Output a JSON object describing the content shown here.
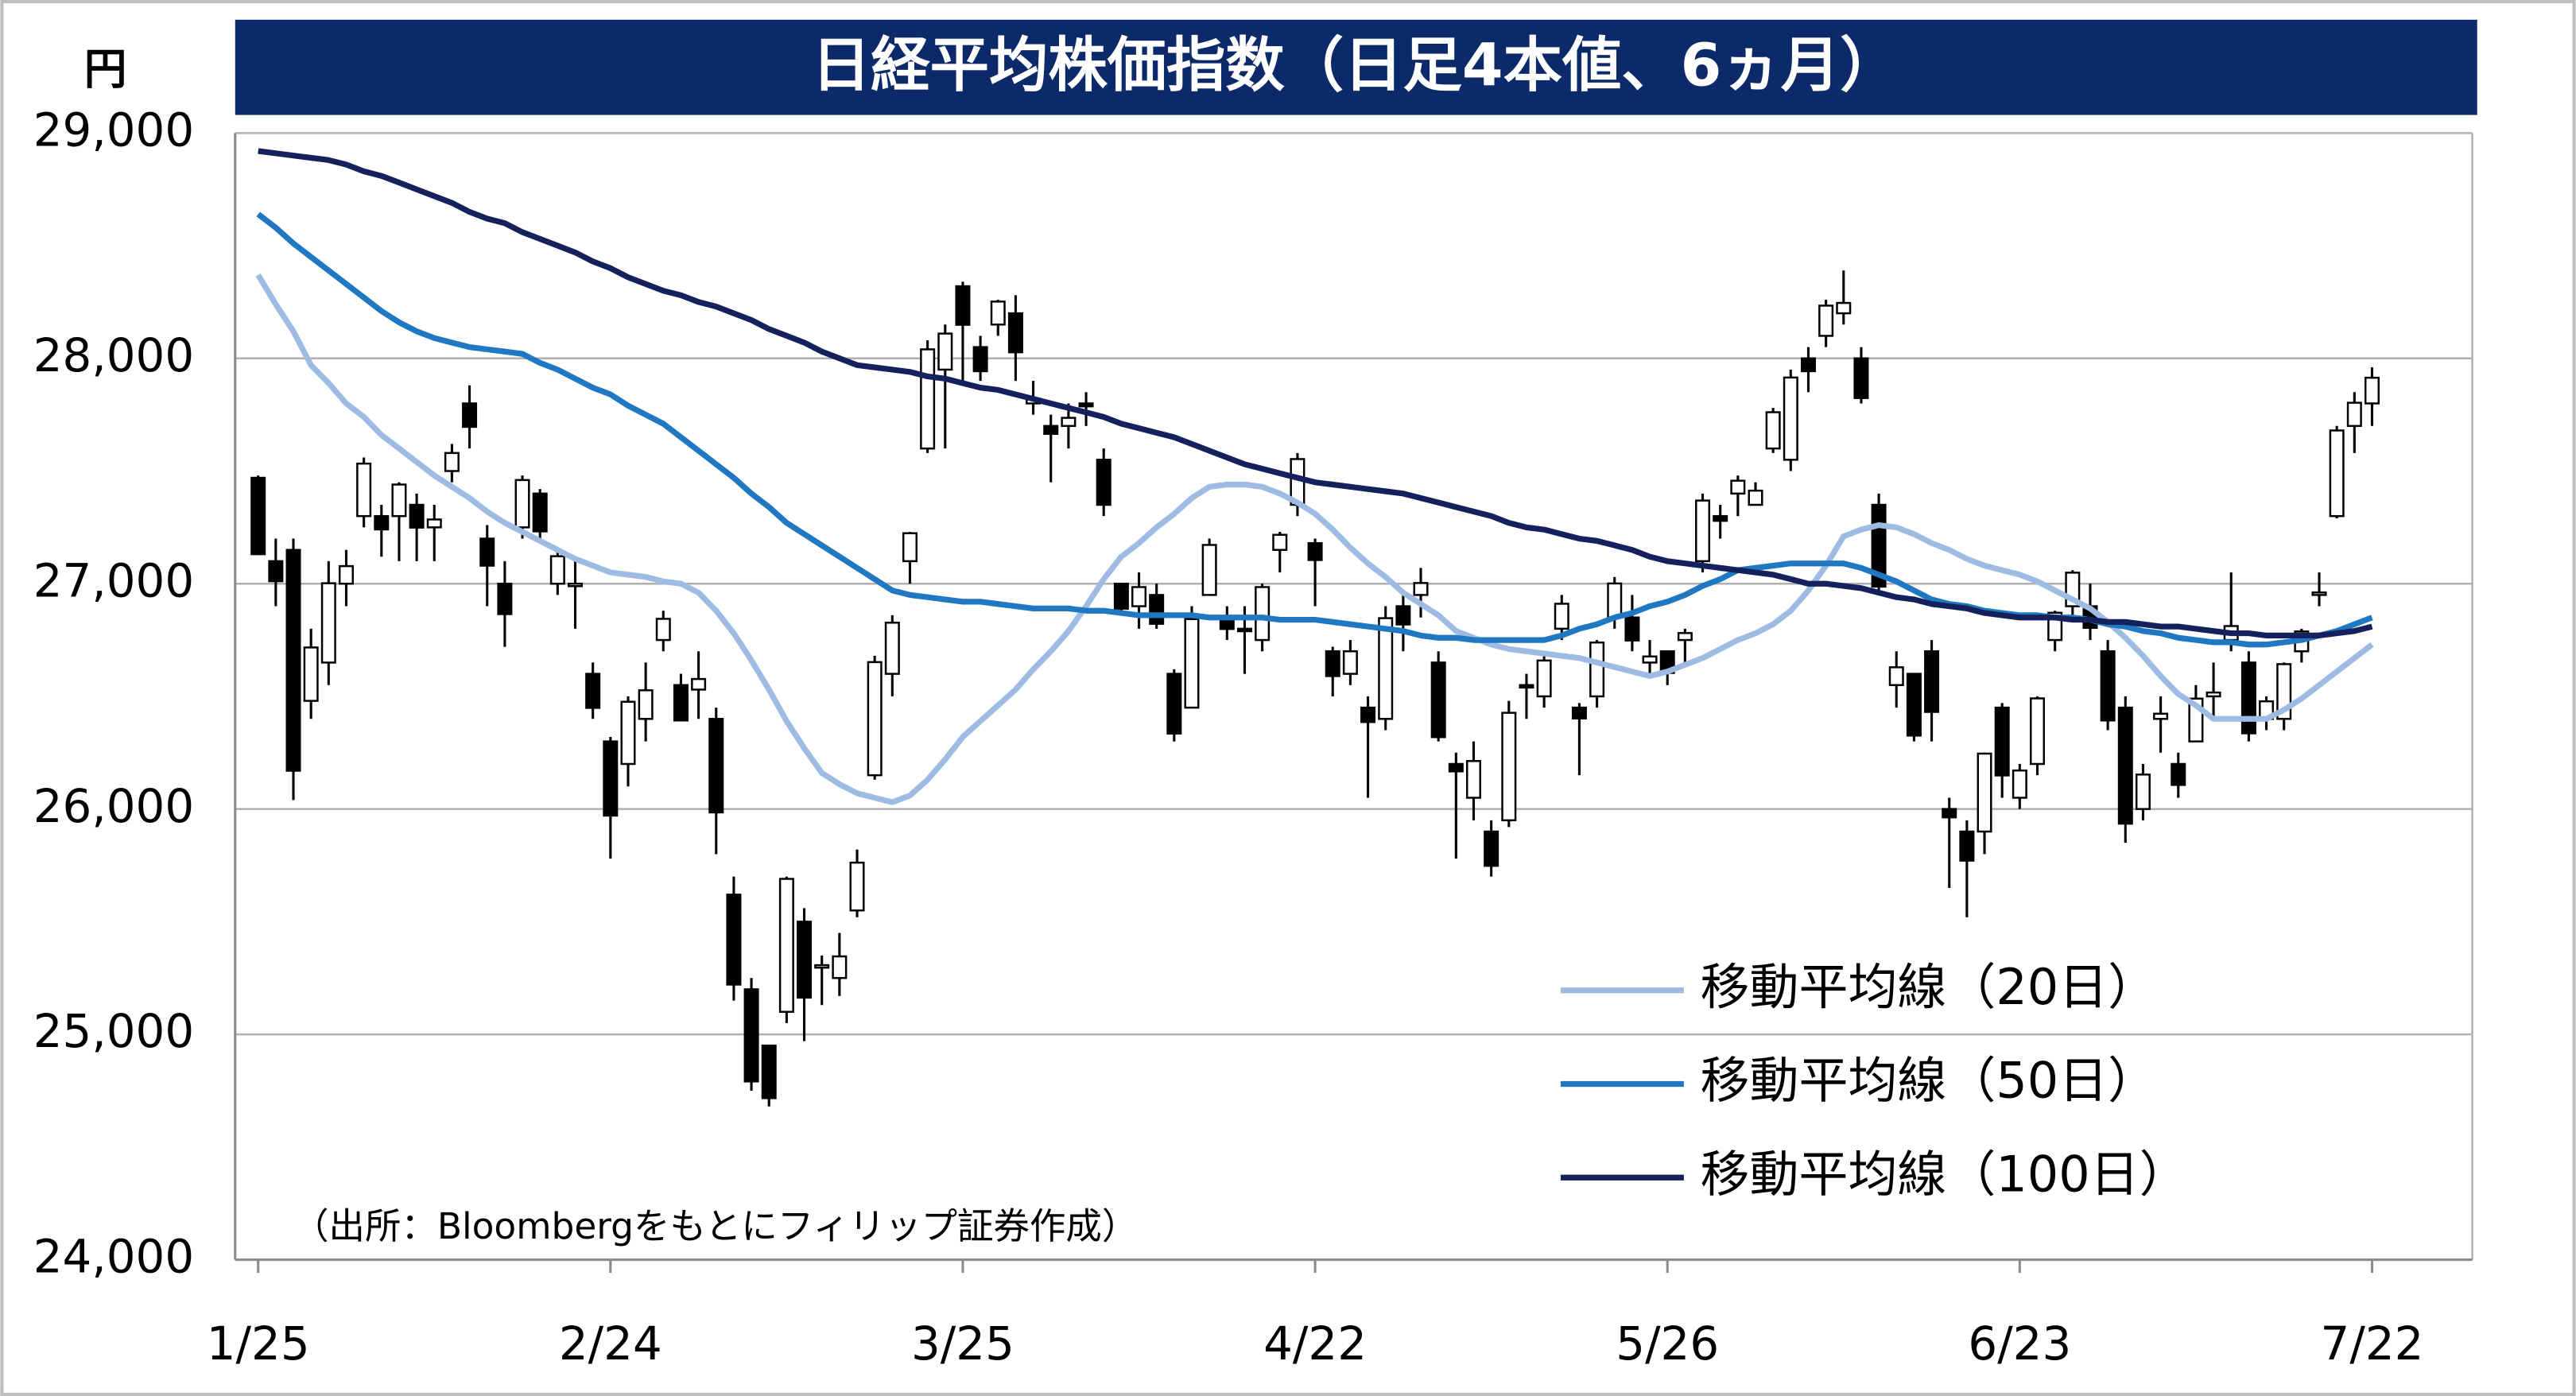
{
  "chart_data": {
    "type": "candlestick",
    "title": "日経平均株価指数（日足4本値、6ヵ月）",
    "y_unit": "円",
    "note": "（出所：Bloombergをもとにフィリップ証券作成）",
    "categories": [
      "1/25",
      null,
      null,
      null,
      null,
      null,
      null,
      null,
      null,
      null,
      null,
      null,
      null,
      null,
      null,
      null,
      null,
      null,
      null,
      null,
      "2/24",
      null,
      null,
      null,
      null,
      null,
      null,
      null,
      null,
      null,
      null,
      null,
      null,
      null,
      null,
      null,
      null,
      null,
      null,
      null,
      "3/25",
      null,
      null,
      null,
      null,
      null,
      null,
      null,
      null,
      null,
      null,
      null,
      null,
      null,
      null,
      null,
      null,
      null,
      null,
      null,
      "4/22",
      null,
      null,
      null,
      null,
      null,
      null,
      null,
      null,
      null,
      null,
      null,
      null,
      null,
      null,
      null,
      null,
      null,
      null,
      null,
      "5/26",
      null,
      null,
      null,
      null,
      null,
      null,
      null,
      null,
      null,
      null,
      null,
      null,
      null,
      null,
      null,
      null,
      null,
      null,
      null,
      "6/23",
      null,
      null,
      null,
      null,
      null,
      null,
      null,
      null,
      null,
      null,
      null,
      null,
      null,
      null,
      null,
      null,
      null,
      null,
      null,
      "7/22"
    ],
    "ohlc": [
      [
        27470,
        27480,
        27130,
        27131
      ],
      [
        27100,
        27200,
        26900,
        27011
      ],
      [
        27150,
        27200,
        26040,
        26170
      ],
      [
        26480,
        26800,
        26400,
        26717
      ],
      [
        26650,
        27100,
        26550,
        27002
      ],
      [
        27000,
        27150,
        26900,
        27078
      ],
      [
        27300,
        27560,
        27250,
        27533
      ],
      [
        27300,
        27350,
        27120,
        27241
      ],
      [
        27300,
        27450,
        27100,
        27440
      ],
      [
        27350,
        27400,
        27100,
        27249
      ],
      [
        27250,
        27350,
        27100,
        27285
      ],
      [
        27500,
        27620,
        27450,
        27580
      ],
      [
        27800,
        27880,
        27600,
        27696
      ],
      [
        27200,
        27260,
        26900,
        27080
      ],
      [
        27000,
        27100,
        26720,
        26865
      ],
      [
        27250,
        27480,
        27200,
        27460
      ],
      [
        27400,
        27420,
        27200,
        27232
      ],
      [
        27000,
        27150,
        26950,
        27122
      ],
      [
        27000,
        27100,
        26800,
        27000
      ],
      [
        26600,
        26650,
        26400,
        26449
      ],
      [
        26300,
        26320,
        25780,
        25971
      ],
      [
        26200,
        26500,
        26100,
        26476
      ],
      [
        26400,
        26650,
        26300,
        26527
      ],
      [
        26750,
        26880,
        26700,
        26844
      ],
      [
        26550,
        26600,
        26400,
        26393
      ],
      [
        26530,
        26700,
        26400,
        26577
      ],
      [
        26400,
        26450,
        25800,
        25985
      ],
      [
        25620,
        25700,
        25150,
        25221
      ],
      [
        25200,
        25250,
        24750,
        24791
      ],
      [
        24950,
        24950,
        24680,
        24717
      ],
      [
        25100,
        25700,
        25050,
        25690
      ],
      [
        25500,
        25560,
        24970,
        25163
      ],
      [
        25300,
        25350,
        25130,
        25307
      ],
      [
        25250,
        25450,
        25170,
        25346
      ],
      [
        25550,
        25820,
        25520,
        25762
      ],
      [
        26150,
        26680,
        26130,
        26652
      ],
      [
        26600,
        26860,
        26500,
        26827
      ],
      [
        27100,
        27230,
        27000,
        27224
      ],
      [
        27600,
        28080,
        27580,
        28040
      ],
      [
        27950,
        28150,
        27600,
        28110
      ],
      [
        28320,
        28340,
        27900,
        28149
      ],
      [
        28050,
        28100,
        27900,
        27943
      ],
      [
        28150,
        28260,
        28100,
        28252
      ],
      [
        28200,
        28280,
        27900,
        28027
      ],
      [
        27800,
        27900,
        27750,
        27821
      ],
      [
        27700,
        27750,
        27450,
        27665
      ],
      [
        27700,
        27800,
        27600,
        27736
      ],
      [
        27800,
        27850,
        27700,
        27787
      ],
      [
        27550,
        27600,
        27300,
        27350
      ],
      [
        27000,
        27000,
        26860,
        26889
      ],
      [
        26900,
        27050,
        26800,
        26985
      ],
      [
        26950,
        27000,
        26800,
        26822
      ],
      [
        26600,
        26620,
        26300,
        26335
      ],
      [
        26450,
        26900,
        26450,
        26843
      ],
      [
        26950,
        27200,
        26950,
        27172
      ],
      [
        26850,
        26900,
        26750,
        26799
      ],
      [
        26800,
        26900,
        26600,
        26799
      ],
      [
        26750,
        27000,
        26700,
        26985
      ],
      [
        27150,
        27230,
        27050,
        27217
      ],
      [
        27350,
        27580,
        27300,
        27553
      ],
      [
        27180,
        27200,
        26900,
        27105
      ],
      [
        26700,
        26720,
        26500,
        26590
      ],
      [
        26600,
        26750,
        26550,
        26700
      ],
      [
        26450,
        26500,
        26050,
        26386
      ],
      [
        26400,
        26900,
        26350,
        26847
      ],
      [
        26900,
        26950,
        26700,
        26819
      ],
      [
        26950,
        27070,
        26850,
        27003
      ],
      [
        26650,
        26700,
        26300,
        26319
      ],
      [
        26200,
        26250,
        25780,
        26167
      ],
      [
        26050,
        26300,
        25950,
        26213
      ],
      [
        25900,
        25950,
        25700,
        25748
      ],
      [
        25950,
        26480,
        25920,
        26427
      ],
      [
        26550,
        26600,
        26400,
        26547
      ],
      [
        26500,
        26700,
        26450,
        26659
      ],
      [
        26800,
        26950,
        26750,
        26911
      ],
      [
        26450,
        26470,
        26150,
        26402
      ],
      [
        26500,
        26750,
        26450,
        26739
      ],
      [
        26850,
        27030,
        26800,
        27001
      ],
      [
        26850,
        26950,
        26700,
        26748
      ],
      [
        26650,
        26750,
        26600,
        26677
      ],
      [
        26700,
        26700,
        26550,
        26604
      ],
      [
        26750,
        26800,
        26650,
        26781
      ],
      [
        27100,
        27400,
        27050,
        27369
      ],
      [
        27300,
        27350,
        27200,
        27279
      ],
      [
        27400,
        27480,
        27300,
        27457
      ],
      [
        27350,
        27450,
        27350,
        27413
      ],
      [
        27600,
        27780,
        27580,
        27761
      ],
      [
        27550,
        27950,
        27500,
        27915
      ],
      [
        28000,
        28050,
        27850,
        27943
      ],
      [
        28100,
        28260,
        28050,
        28234
      ],
      [
        28200,
        28390,
        28150,
        28246
      ],
      [
        28000,
        28050,
        27800,
        27824
      ],
      [
        27350,
        27400,
        26950,
        26987
      ],
      [
        26550,
        26700,
        26450,
        26629
      ],
      [
        26600,
        26600,
        26300,
        26326
      ],
      [
        26700,
        26750,
        26300,
        26431
      ],
      [
        26000,
        26050,
        25650,
        25963
      ],
      [
        25900,
        25950,
        25520,
        25771
      ],
      [
        25900,
        26250,
        25800,
        26246
      ],
      [
        26450,
        26470,
        26050,
        26149
      ],
      [
        26050,
        26200,
        26000,
        26171
      ],
      [
        26200,
        26500,
        26150,
        26491
      ],
      [
        26750,
        26880,
        26700,
        26871
      ],
      [
        26900,
        27060,
        26850,
        27049
      ],
      [
        26900,
        27000,
        26750,
        26804
      ],
      [
        26700,
        26750,
        26350,
        26393
      ],
      [
        26450,
        26500,
        25850,
        25935
      ],
      [
        26000,
        26200,
        25950,
        26153
      ],
      [
        26400,
        26500,
        26250,
        26423
      ],
      [
        26200,
        26250,
        26050,
        26107
      ],
      [
        26300,
        26550,
        26300,
        26490
      ],
      [
        26500,
        26650,
        26400,
        26517
      ],
      [
        26750,
        27050,
        26700,
        26812
      ],
      [
        26650,
        26700,
        26300,
        26336
      ],
      [
        26400,
        26500,
        26350,
        26478
      ],
      [
        26400,
        26650,
        26350,
        26643
      ],
      [
        26700,
        26800,
        26650,
        26788
      ],
      [
        26950,
        27050,
        26900,
        26961
      ],
      [
        27300,
        27700,
        27290,
        27680
      ],
      [
        27700,
        27850,
        27580,
        27803
      ],
      [
        27800,
        27960,
        27700,
        27914
      ]
    ],
    "up_color": "#ffffff",
    "down_color": "#000000",
    "series": [
      {
        "name": "移動平均線（20日）",
        "color": "#9dbbe3",
        "values": [
          28370,
          28240,
          28120,
          27970,
          27890,
          27800,
          27740,
          27660,
          27600,
          27540,
          27480,
          27430,
          27380,
          27320,
          27270,
          27230,
          27190,
          27150,
          27110,
          27080,
          27050,
          27040,
          27030,
          27010,
          27000,
          26960,
          26880,
          26780,
          26660,
          26530,
          26390,
          26270,
          26160,
          26110,
          26070,
          26050,
          26030,
          26060,
          26130,
          26220,
          26320,
          26390,
          26460,
          26530,
          26620,
          26700,
          26790,
          26900,
          27020,
          27120,
          27180,
          27250,
          27310,
          27380,
          27430,
          27440,
          27440,
          27430,
          27400,
          27360,
          27310,
          27240,
          27160,
          27090,
          27030,
          26960,
          26910,
          26860,
          26790,
          26760,
          26730,
          26710,
          26700,
          26690,
          26680,
          26670,
          26650,
          26630,
          26610,
          26590,
          26610,
          26640,
          26670,
          26710,
          26750,
          26780,
          26820,
          26880,
          26970,
          27080,
          27210,
          27240,
          27260,
          27250,
          27220,
          27180,
          27150,
          27110,
          27080,
          27060,
          27040,
          27010,
          26970,
          26930,
          26890,
          26830,
          26760,
          26680,
          26590,
          26510,
          26460,
          26400,
          26400,
          26400,
          26400,
          26440,
          26490,
          26550,
          26610,
          26670,
          26730
        ]
      },
      {
        "name": "移動平均線（50日）",
        "color": "#1f78c1",
        "values": [
          28640,
          28580,
          28510,
          28450,
          28390,
          28330,
          28270,
          28210,
          28160,
          28120,
          28090,
          28070,
          28050,
          28040,
          28030,
          28020,
          27980,
          27950,
          27910,
          27870,
          27840,
          27790,
          27750,
          27710,
          27650,
          27590,
          27530,
          27470,
          27400,
          27340,
          27270,
          27220,
          27170,
          27120,
          27070,
          27020,
          26970,
          26950,
          26940,
          26930,
          26920,
          26920,
          26910,
          26900,
          26890,
          26890,
          26890,
          26880,
          26880,
          26870,
          26860,
          26860,
          26860,
          26860,
          26850,
          26850,
          26850,
          26850,
          26840,
          26840,
          26840,
          26830,
          26820,
          26810,
          26800,
          26790,
          26770,
          26760,
          26760,
          26750,
          26750,
          26750,
          26750,
          26750,
          26770,
          26800,
          26820,
          26850,
          26870,
          26900,
          26920,
          26950,
          26990,
          27020,
          27060,
          27070,
          27080,
          27090,
          27090,
          27090,
          27090,
          27070,
          27040,
          27010,
          26970,
          26930,
          26910,
          26900,
          26880,
          26870,
          26860,
          26860,
          26850,
          26850,
          26840,
          26820,
          26810,
          26790,
          26780,
          26760,
          26750,
          26740,
          26740,
          26730,
          26730,
          26740,
          26750,
          26770,
          26790,
          26820,
          26850
        ]
      },
      {
        "name": "移動平均線（100日）",
        "color": "#14215c",
        "values": [
          28920,
          28910,
          28900,
          28890,
          28880,
          28860,
          28830,
          28810,
          28780,
          28750,
          28720,
          28690,
          28650,
          28620,
          28600,
          28560,
          28530,
          28500,
          28470,
          28430,
          28400,
          28360,
          28330,
          28300,
          28280,
          28250,
          28230,
          28200,
          28170,
          28130,
          28100,
          28070,
          28030,
          28000,
          27970,
          27960,
          27950,
          27940,
          27920,
          27910,
          27890,
          27870,
          27860,
          27840,
          27820,
          27800,
          27780,
          27760,
          27740,
          27710,
          27690,
          27670,
          27650,
          27620,
          27590,
          27560,
          27530,
          27510,
          27490,
          27470,
          27450,
          27440,
          27430,
          27420,
          27410,
          27400,
          27380,
          27360,
          27340,
          27320,
          27300,
          27270,
          27250,
          27240,
          27220,
          27200,
          27190,
          27170,
          27150,
          27120,
          27100,
          27090,
          27080,
          27070,
          27060,
          27050,
          27040,
          27020,
          27000,
          27000,
          26990,
          26980,
          26960,
          26940,
          26930,
          26910,
          26900,
          26890,
          26870,
          26860,
          26850,
          26850,
          26850,
          26840,
          26840,
          26830,
          26830,
          26820,
          26810,
          26810,
          26800,
          26790,
          26780,
          26780,
          26770,
          26770,
          26770,
          26770,
          26780,
          26790,
          26810
        ]
      }
    ],
    "ylim": [
      24000,
      29000
    ],
    "yticks": [
      {
        "value": 24000,
        "label": "24,000"
      },
      {
        "value": 25000,
        "label": "25,000"
      },
      {
        "value": 26000,
        "label": "26,000"
      },
      {
        "value": 27000,
        "label": "27,000"
      },
      {
        "value": 28000,
        "label": "28,000"
      },
      {
        "value": 29000,
        "label": "29,000"
      }
    ],
    "grid": true,
    "legend": "lower right"
  }
}
